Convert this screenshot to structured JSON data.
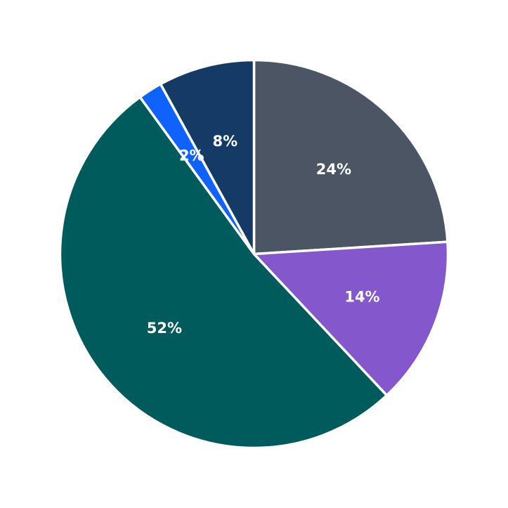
{
  "chart_data": {
    "type": "pie",
    "title": "",
    "legend": "none",
    "start_angle_deg": 0,
    "direction": "clockwise-from-top",
    "slices": [
      {
        "label": "24%",
        "value": 24,
        "color": "#4b5563"
      },
      {
        "label": "14%",
        "value": 14,
        "color": "#8457cc"
      },
      {
        "label": "52%",
        "value": 52,
        "color": "#005c5c"
      },
      {
        "label": "2%",
        "value": 2,
        "color": "#0f62fe"
      },
      {
        "label": "8%",
        "value": 8,
        "color": "#163a66"
      }
    ]
  }
}
